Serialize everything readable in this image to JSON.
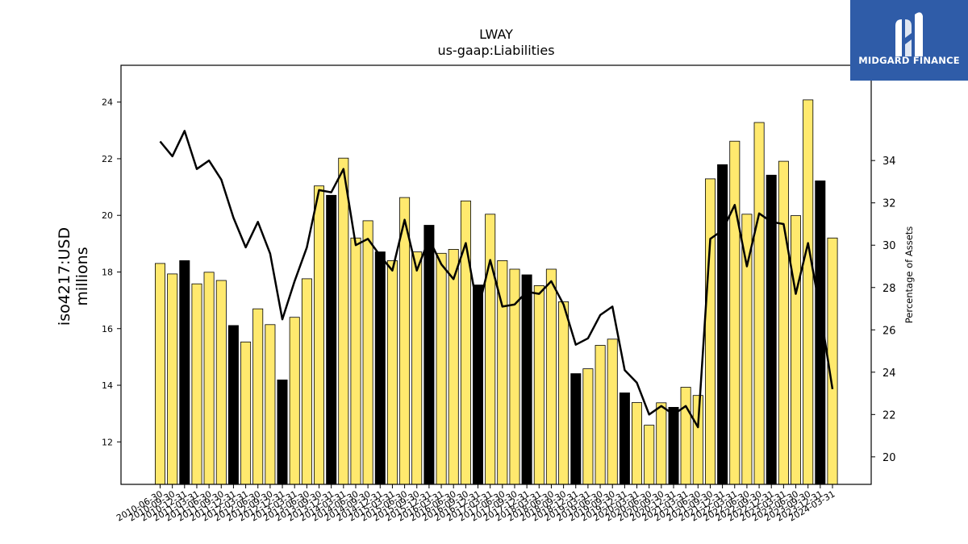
{
  "chart_data": {
    "type": "bar",
    "title": "LWAY",
    "subtitle": "us-gaap:Liabilities",
    "ylabel": "iso4217:USD millions",
    "y2label": "Percentage of Assets",
    "ylim": [
      10.5,
      25.3
    ],
    "y2lim": [
      18.7,
      38.5
    ],
    "yticks": [
      12,
      14,
      16,
      18,
      20,
      22,
      24
    ],
    "y2ticks": [
      20,
      22,
      24,
      26,
      28,
      30,
      32,
      34
    ],
    "categories": [
      "2010-06-30",
      "2010-09-30",
      "2010-12-31",
      "2011-03-31",
      "2011-06-30",
      "2011-09-30",
      "2011-12-31",
      "2012-03-31",
      "2012-06-30",
      "2012-09-30",
      "2012-12-31",
      "2013-03-31",
      "2013-06-30",
      "2013-09-30",
      "2013-12-31",
      "2014-03-31",
      "2014-06-30",
      "2014-09-30",
      "2014-12-31",
      "2015-03-31",
      "2015-06-30",
      "2015-09-30",
      "2015-12-31",
      "2016-03-31",
      "2016-06-30",
      "2016-09-30",
      "2016-12-31",
      "2017-03-31",
      "2017-06-30",
      "2017-09-30",
      "2017-12-31",
      "2018-03-31",
      "2018-06-30",
      "2018-09-30",
      "2018-12-31",
      "2019-03-31",
      "2019-06-30",
      "2019-09-30",
      "2019-12-31",
      "2020-03-31",
      "2020-06-30",
      "2020-09-30",
      "2020-12-31",
      "2021-03-31",
      "2021-06-30",
      "2021-09-30",
      "2021-12-31",
      "2022-03-31",
      "2022-06-30",
      "2022-09-30",
      "2022-12-31",
      "2023-03-31",
      "2023-06-30",
      "2023-09-30",
      "2023-12-31",
      "2024-03-31"
    ],
    "tick_labels_shown": [
      "2010-06-30",
      "2010-09-30",
      "2010-12-31",
      "2011-03-31",
      "2011-06-30",
      "2011-09-30",
      "2011-12-31",
      "2012-03-31",
      "2012-06-30",
      "2012-09-30",
      "2012-12-31",
      "2013-03-31",
      "2013-06-30",
      "2013-09-30",
      "2013-12-31",
      "2014-03-31",
      "2014-06-30",
      "2014-09-30",
      "2014-12-31",
      "2015-03-31",
      "2015-06-30",
      "2015-09-30",
      "2015-12-31",
      "2016-03-31",
      "2016-06-30",
      "2016-09-30",
      "2016-12-31",
      "2017-03-31",
      "2017-06-30",
      "2017-09-30",
      "2017-12-31",
      "2018-03-31",
      "2018-06-30",
      "2018-09-30",
      "2018-12-31",
      "2019-03-31",
      "2019-06-30",
      "2019-09-30",
      "2019-12-31",
      "2020-03-31",
      "2020-06-30",
      "2020-09-30",
      "2020-12-31",
      "2021-03-31",
      "2021-06-30",
      "2021-09-30",
      "2021-12-31",
      "2022-03-31",
      "2022-06-30",
      "2022-09-30",
      "2022-12-31",
      "2023-03-31",
      "2023-06-30",
      "2023-09-30",
      "2023-12-31",
      "2024-03-31"
    ],
    "bar_values": [
      18.3,
      17.93,
      18.4,
      17.58,
      17.99,
      17.7,
      16.11,
      15.53,
      16.7,
      16.14,
      14.19,
      16.4,
      17.76,
      21.04,
      20.71,
      22.02,
      19.2,
      19.81,
      18.71,
      18.4,
      20.63,
      18.71,
      19.65,
      18.66,
      18.8,
      20.51,
      17.54,
      20.04,
      18.4,
      18.1,
      17.9,
      17.52,
      18.1,
      16.95,
      14.41,
      14.58,
      15.41,
      15.63,
      13.73,
      13.39,
      12.59,
      13.38,
      13.22,
      13.93,
      13.64,
      21.29,
      21.79,
      22.62,
      20.04,
      23.28,
      21.42,
      21.91,
      19.99,
      24.08,
      21.22,
      19.2
    ],
    "bar_highlight": [
      false,
      false,
      true,
      false,
      false,
      false,
      true,
      false,
      false,
      false,
      true,
      false,
      false,
      false,
      true,
      false,
      false,
      false,
      true,
      false,
      false,
      false,
      true,
      false,
      false,
      false,
      true,
      false,
      false,
      false,
      true,
      false,
      false,
      false,
      true,
      false,
      false,
      false,
      true,
      false,
      false,
      false,
      true,
      false,
      false,
      false,
      true,
      false,
      false,
      false,
      true,
      false,
      false,
      false,
      true,
      false
    ],
    "line_values": [
      34.9,
      34.2,
      35.4,
      33.6,
      34.0,
      33.1,
      31.3,
      29.9,
      31.1,
      29.6,
      26.5,
      28.3,
      29.9,
      32.6,
      32.5,
      33.6,
      30.0,
      30.3,
      29.5,
      28.8,
      31.2,
      28.8,
      30.3,
      29.1,
      28.4,
      30.1,
      26.9,
      29.3,
      27.1,
      27.2,
      27.8,
      27.7,
      28.3,
      27.2,
      25.3,
      25.6,
      26.7,
      27.1,
      24.1,
      23.5,
      22.0,
      22.4,
      22.0,
      22.4,
      21.4,
      30.3,
      30.7,
      31.9,
      29.0,
      31.5,
      31.1,
      31.0,
      27.7,
      30.1,
      26.9,
      23.2
    ],
    "colors": {
      "bar": "#ffe96e",
      "bar_highlight": "#000000",
      "line": "#000000",
      "logo_bg": "#2f5ca8"
    },
    "grid": false,
    "legend": "none"
  },
  "logo": {
    "text": "MIDGARD FINANCE"
  }
}
